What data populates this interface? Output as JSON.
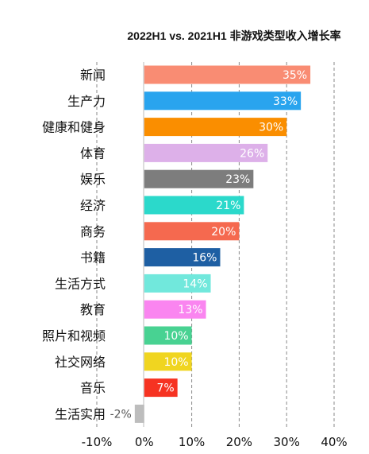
{
  "chart_data": {
    "type": "bar",
    "orientation": "horizontal",
    "title": "2022H1 vs. 2021H1 非游戏类型收入增长率",
    "xlabel": "",
    "ylabel": "",
    "xlim": [
      -10,
      40
    ],
    "grid": "vertical-dashed",
    "legend": "none",
    "categories": [
      "新闻",
      "生产力",
      "健康和健身",
      "体育",
      "娱乐",
      "经济",
      "商务",
      "书籍",
      "生活方式",
      "教育",
      "照片和视频",
      "社交网络",
      "音乐",
      "生活实用"
    ],
    "values": [
      35,
      33,
      30,
      26,
      23,
      21,
      20,
      16,
      14,
      13,
      10,
      10,
      7,
      -2
    ],
    "value_labels": [
      "35%",
      "33%",
      "30%",
      "26%",
      "23%",
      "21%",
      "20%",
      "16%",
      "14%",
      "13%",
      "10%",
      "10%",
      "7%",
      "-2%"
    ],
    "colors": [
      "#F98C73",
      "#29A4EE",
      "#FA8E00",
      "#DDB0E9",
      "#7D7D7D",
      "#2BD9CB",
      "#F5694F",
      "#1E5FA3",
      "#71E8DC",
      "#FA85F0",
      "#48D292",
      "#F0D520",
      "#F63322",
      "#BDBDBD"
    ],
    "value_label_colors": [
      "#ffffff",
      "#ffffff",
      "#ffffff",
      "#ffffff",
      "#ffffff",
      "#ffffff",
      "#ffffff",
      "#ffffff",
      "#ffffff",
      "#ffffff",
      "#ffffff",
      "#ffffff",
      "#ffffff",
      "#555555"
    ],
    "ticks": [
      -10,
      0,
      10,
      20,
      30,
      40
    ],
    "tick_labels": [
      "-10%",
      "0%",
      "10%",
      "20%",
      "30%",
      "40%"
    ]
  }
}
